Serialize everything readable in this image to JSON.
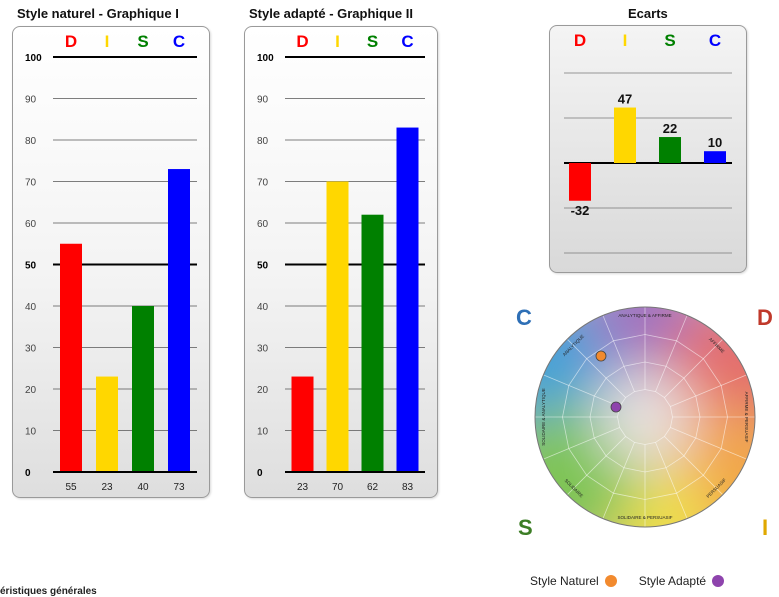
{
  "chart_data": [
    {
      "type": "bar",
      "title": "Style naturel - Graphique I",
      "categories": [
        "D",
        "I",
        "S",
        "C"
      ],
      "values": [
        55,
        23,
        40,
        73
      ],
      "value_labels": [
        "55",
        "23",
        "40",
        "73"
      ],
      "ylim": [
        0,
        100
      ],
      "yticks": [
        "0",
        "10",
        "20",
        "30",
        "40",
        "50",
        "60",
        "70",
        "80",
        "90",
        "100"
      ],
      "bold_gridlines": [
        0,
        50,
        100
      ],
      "colors": [
        "#ff0000",
        "#ffd700",
        "#008000",
        "#0000ff"
      ],
      "grid": true
    },
    {
      "type": "bar",
      "title": "Style adapté - Graphique II",
      "categories": [
        "D",
        "I",
        "S",
        "C"
      ],
      "values": [
        23,
        70,
        62,
        83
      ],
      "value_labels": [
        "23",
        "70",
        "62",
        "83"
      ],
      "ylim": [
        0,
        100
      ],
      "yticks": [
        "0",
        "10",
        "20",
        "30",
        "40",
        "50",
        "60",
        "70",
        "80",
        "90",
        "100"
      ],
      "bold_gridlines": [
        0,
        50,
        100
      ],
      "colors": [
        "#ff0000",
        "#ffd700",
        "#008000",
        "#0000ff"
      ],
      "grid": true
    },
    {
      "type": "bar",
      "title": "Ecarts",
      "categories": [
        "D",
        "I",
        "S",
        "C"
      ],
      "values": [
        -32,
        47,
        22,
        10
      ],
      "value_labels": [
        "-32",
        "47",
        "22",
        "10"
      ],
      "ylim": [
        -50,
        50
      ],
      "colors": [
        "#ff0000",
        "#ffd700",
        "#008000",
        "#0000ff"
      ],
      "grid": true
    }
  ],
  "wheel": {
    "corners": {
      "c": "C",
      "d": "D",
      "s": "S",
      "i": "I"
    },
    "corner_colors": {
      "c": "#2e6fb6",
      "d": "#c0392b",
      "s": "#3c7d25",
      "i": "#e0a800"
    },
    "segment_labels": [
      "ANALYTIQUE & AFFIRME",
      "AFFIRME",
      "AFFIRME & PERSUASIF",
      "PERSUASIF",
      "SOLIDAIRE & PERSUASIF",
      "SOLIDAIRE",
      "SOLIDAIRE & ANALYTIQUE",
      "ANALYTIQUE"
    ],
    "legend": [
      {
        "label": "Style Naturel",
        "color": "#f28a2e"
      },
      {
        "label": "Style Adapté",
        "color": "#8e44ad"
      }
    ]
  },
  "footer": {
    "text": "éristiques générales"
  }
}
